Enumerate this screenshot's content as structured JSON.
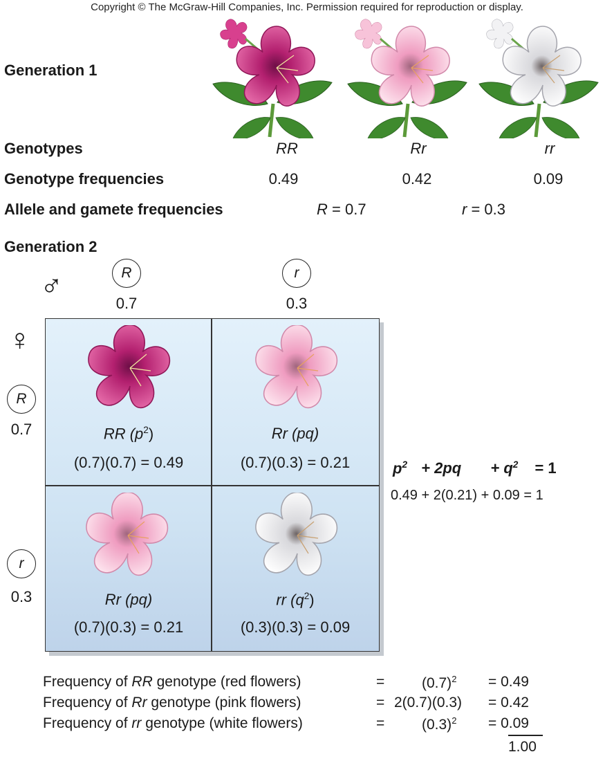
{
  "copyright": "Copyright © The McGraw-Hill Companies, Inc. Permission required for reproduction or display.",
  "gen1": {
    "title": "Generation 1",
    "genotypes_label": "Genotypes",
    "genotype_freq_label": "Genotype frequencies",
    "allele_label": "Allele and gamete frequencies",
    "genotypes": [
      "RR",
      "Rr",
      "rr"
    ],
    "frequencies": [
      "0.49",
      "0.42",
      "0.09"
    ],
    "allele_R": "R",
    "allele_R_value": "= 0.7",
    "allele_r": "r",
    "allele_r_value": "= 0.3"
  },
  "gen2": {
    "title": "Generation 2",
    "male_symbol": "♂",
    "female_symbol": "♀",
    "male_R": "R",
    "male_R_freq": "0.7",
    "male_r": "r",
    "male_r_freq": "0.3",
    "female_R": "R",
    "female_R_freq": "0.7",
    "female_r": "r",
    "female_r_freq": "0.3",
    "cells": [
      {
        "genotype": "RR",
        "term_pre": "(p",
        "term_sup": "2",
        "term_post": ")",
        "calc": "(0.7)(0.7) = 0.49"
      },
      {
        "genotype": "Rr",
        "term_pre": "(pq)",
        "term_sup": "",
        "term_post": "",
        "calc": "(0.7)(0.3) = 0.21"
      },
      {
        "genotype": "Rr",
        "term_pre": "(pq)",
        "term_sup": "",
        "term_post": "",
        "calc": "(0.7)(0.3) = 0.21"
      },
      {
        "genotype": "rr",
        "term_pre": "(q",
        "term_sup": "2",
        "term_post": ")",
        "calc": "(0.3)(0.3) = 0.09"
      }
    ]
  },
  "equation": {
    "p": "p",
    "p_sup": "2",
    "two_pq": "+ 2pq",
    "plus_q": "+ q",
    "q_sup": "2",
    "equals": "= 1",
    "numeric": "0.49 + 2(0.21) + 0.09 = 1"
  },
  "summary": {
    "rows": [
      {
        "prefix": "Frequency of ",
        "geno": "RR",
        "suffix": " genotype (red flowers)",
        "eq": "=",
        "expr": "(0.7)",
        "sup": "2",
        "result": "= 0.49"
      },
      {
        "prefix": "Frequency of ",
        "geno": "Rr",
        "suffix": " genotype (pink flowers)",
        "eq": "=",
        "expr": "2(0.7)(0.3)",
        "sup": "",
        "result": "= 0.42"
      },
      {
        "prefix": "Frequency of ",
        "geno": "rr",
        "suffix": " genotype (white flowers)",
        "eq": "=",
        "expr": "(0.3)",
        "sup": "2",
        "result": "= 0.09"
      }
    ],
    "total": "1.00"
  },
  "colors": {
    "red_flower": "#c2267f",
    "pink_flower": "#f3bdd4",
    "white_flower": "#f4f5f7",
    "leaf": "#3f8a2e",
    "grid_bg": "#d6e8f6"
  }
}
